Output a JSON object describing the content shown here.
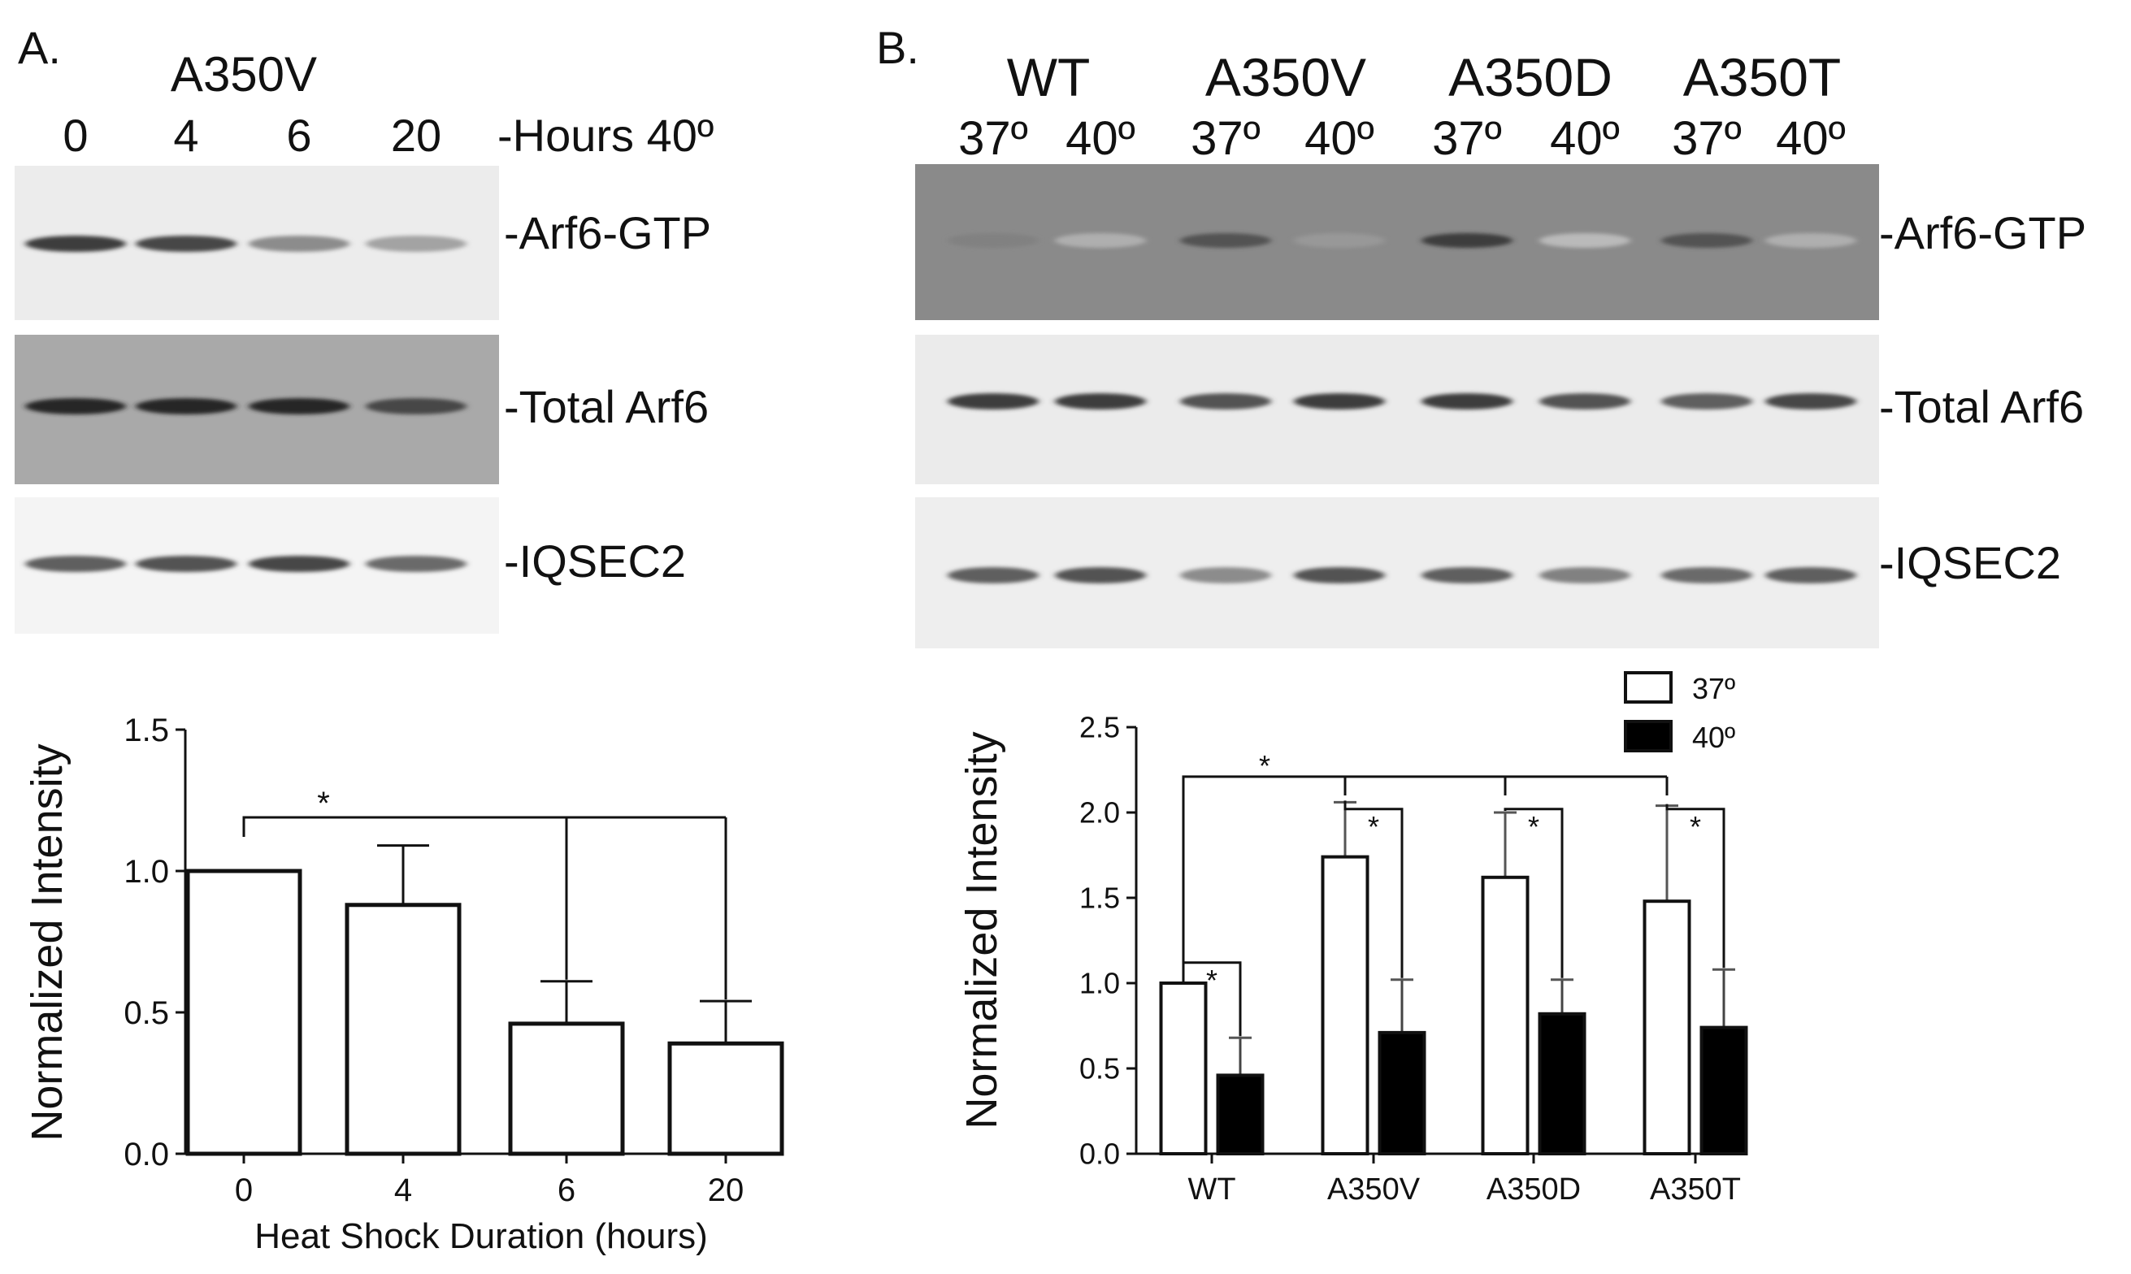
{
  "panel_a": {
    "label": "A.",
    "blot": {
      "construct": "A350V",
      "lanes": [
        "0",
        "4",
        "6",
        "20"
      ],
      "lane_header": "-Hours 40º",
      "rows": [
        {
          "label": "-Arf6-GTP",
          "intensities": [
            0.85,
            0.8,
            0.5,
            0.4
          ]
        },
        {
          "label": "-Total Arf6",
          "intensities": [
            0.95,
            0.95,
            0.95,
            0.8
          ]
        },
        {
          "label": "-IQSEC2",
          "intensities": [
            0.7,
            0.75,
            0.8,
            0.65
          ]
        }
      ]
    }
  },
  "panel_b": {
    "label": "B.",
    "blot": {
      "groups": [
        "WT",
        "A350V",
        "A350D",
        "A350T"
      ],
      "temps": [
        "37º",
        "40º",
        "37º",
        "40º",
        "37º",
        "40º",
        "37º",
        "40º"
      ],
      "rows": [
        {
          "label": "-Arf6-GTP",
          "intensities": [
            0.55,
            0.35,
            0.75,
            0.45,
            0.85,
            0.3,
            0.75,
            0.35
          ]
        },
        {
          "label": "-Total Arf6",
          "intensities": [
            0.85,
            0.85,
            0.75,
            0.85,
            0.85,
            0.75,
            0.7,
            0.8
          ]
        },
        {
          "label": "-IQSEC2",
          "intensities": [
            0.7,
            0.75,
            0.5,
            0.75,
            0.7,
            0.55,
            0.65,
            0.7
          ]
        }
      ]
    }
  },
  "chart_data": [
    {
      "type": "bar",
      "categories": [
        "0",
        "4",
        "6",
        "20"
      ],
      "series": [
        {
          "values": [
            1.0,
            0.88,
            0.46,
            0.39
          ],
          "errors": [
            0.0,
            0.21,
            0.15,
            0.15
          ],
          "color": "#ffffff"
        }
      ],
      "xlabel": "Heat Shock Duration (hours)",
      "ylabel": "Normalized Intensity",
      "ylim": [
        0,
        1.5
      ],
      "yticks": [
        "0.0",
        "0.5",
        "1.0",
        "1.5"
      ],
      "significance": [
        {
          "from": "0",
          "to": [
            "6",
            "20"
          ],
          "label": "*"
        }
      ]
    },
    {
      "type": "bar",
      "categories": [
        "WT",
        "A350V",
        "A350D",
        "A350T"
      ],
      "series": [
        {
          "name": "37º",
          "values": [
            1.0,
            1.74,
            1.62,
            1.48
          ],
          "errors": [
            0.0,
            0.32,
            0.38,
            0.56
          ],
          "color": "#ffffff"
        },
        {
          "name": "40º",
          "values": [
            0.46,
            0.71,
            0.82,
            0.74
          ],
          "errors": [
            0.22,
            0.31,
            0.2,
            0.34
          ],
          "color": "#000000"
        }
      ],
      "xlabel": "",
      "ylabel": "Normalized Intensity",
      "ylim": [
        0,
        2.5
      ],
      "yticks": [
        "0.0",
        "0.5",
        "1.0",
        "1.5",
        "2.0",
        "2.5"
      ],
      "legend_position": "top-right",
      "significance_label": "*"
    }
  ]
}
